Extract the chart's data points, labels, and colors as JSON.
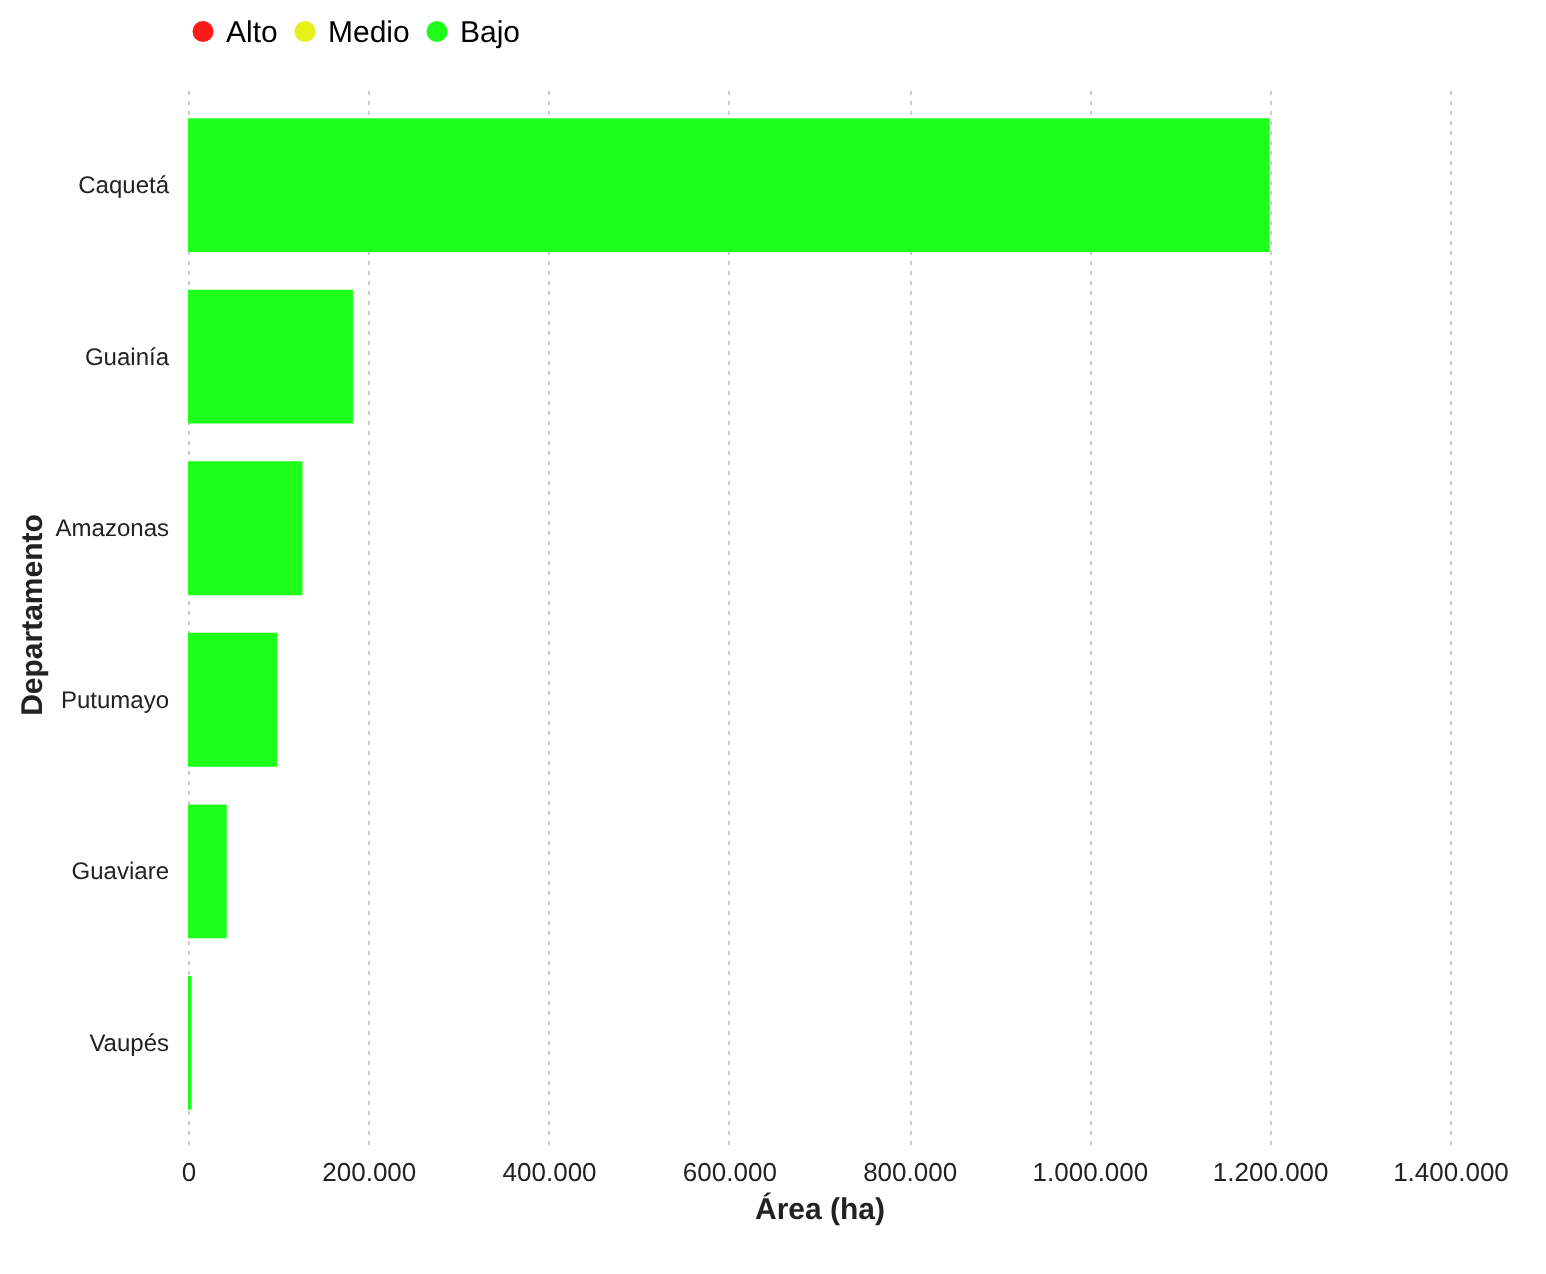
{
  "chart_data": {
    "type": "bar",
    "orientation": "horizontal",
    "xlabel": "Área (ha)",
    "ylabel": "Departamento",
    "categories": [
      "Caquetá",
      "Guainía",
      "Amazonas",
      "Putumayo",
      "Guaviare",
      "Vaupés"
    ],
    "series": [
      {
        "name": "Alto",
        "color": "#ff1a1a",
        "values": [
          null,
          null,
          null,
          null,
          null,
          null
        ]
      },
      {
        "name": "Medio",
        "color": "#e6f01a",
        "values": [
          null,
          null,
          null,
          null,
          null,
          null
        ]
      },
      {
        "name": "Bajo",
        "color": "#1eff1a",
        "values": [
          1200000,
          183000,
          127000,
          99000,
          43000,
          4000
        ]
      }
    ],
    "xlim": [
      0,
      1400000
    ],
    "xticks": [
      {
        "value": 0,
        "label": "0"
      },
      {
        "value": 200000,
        "label": "200.000"
      },
      {
        "value": 400000,
        "label": "400.000"
      },
      {
        "value": 600000,
        "label": "600.000"
      },
      {
        "value": 800000,
        "label": "800.000"
      },
      {
        "value": 1000000,
        "label": "1.000.000"
      },
      {
        "value": 1200000,
        "label": "1.200.000"
      },
      {
        "value": 1400000,
        "label": "1.400.000"
      }
    ],
    "grid": "x",
    "legend": "top"
  }
}
